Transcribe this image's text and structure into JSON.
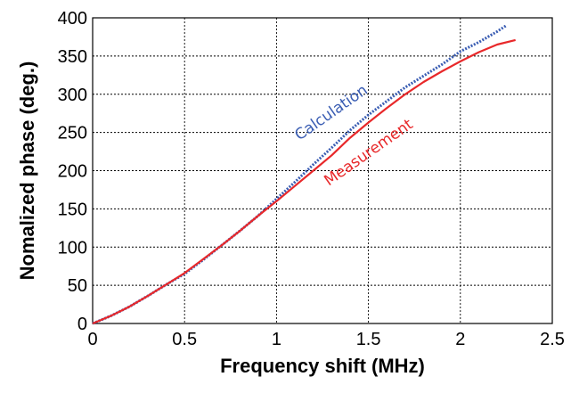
{
  "chart_data": {
    "type": "line",
    "xlabel": "Frequency shift (MHz)",
    "ylabel": "Nomalized phase (deg.)",
    "xlim": [
      0,
      2.5
    ],
    "ylim": [
      0,
      400
    ],
    "x_ticks": [
      "0",
      "0.5",
      "1",
      "1.5",
      "2",
      "2.5"
    ],
    "y_ticks": [
      "0",
      "50",
      "100",
      "150",
      "200",
      "250",
      "300",
      "350",
      "400"
    ],
    "grid": true,
    "legend": "none (series labeled by inline annotations)",
    "series": [
      {
        "name": "Calculation",
        "color": "#3a5db3",
        "style": "dotted",
        "x": [
          0,
          0.1,
          0.2,
          0.3,
          0.4,
          0.5,
          0.6,
          0.7,
          0.8,
          0.9,
          1.0,
          1.1,
          1.2,
          1.3,
          1.4,
          1.5,
          1.6,
          1.7,
          1.8,
          1.9,
          2.0,
          2.1,
          2.2,
          2.25
        ],
        "y": [
          0,
          10,
          22,
          36,
          51,
          65,
          83,
          102,
          121,
          141,
          163,
          185,
          208,
          230,
          253,
          273,
          291,
          309,
          324,
          339,
          356,
          368,
          382,
          390
        ]
      },
      {
        "name": "Measurement",
        "color": "#e8282a",
        "style": "solid",
        "x": [
          0,
          0.1,
          0.2,
          0.3,
          0.4,
          0.5,
          0.6,
          0.7,
          0.8,
          0.9,
          1.0,
          1.1,
          1.2,
          1.3,
          1.4,
          1.5,
          1.6,
          1.7,
          1.8,
          1.9,
          2.0,
          2.1,
          2.2,
          2.3
        ],
        "y": [
          0,
          10,
          22,
          36,
          51,
          66,
          84,
          102,
          121,
          141,
          160,
          180,
          200,
          220,
          243,
          263,
          282,
          300,
          316,
          330,
          343,
          355,
          365,
          371
        ]
      }
    ],
    "annotations": [
      {
        "text": "Calculation",
        "color": "#3a5db3"
      },
      {
        "text": "Measurement",
        "color": "#e8282a"
      }
    ]
  }
}
